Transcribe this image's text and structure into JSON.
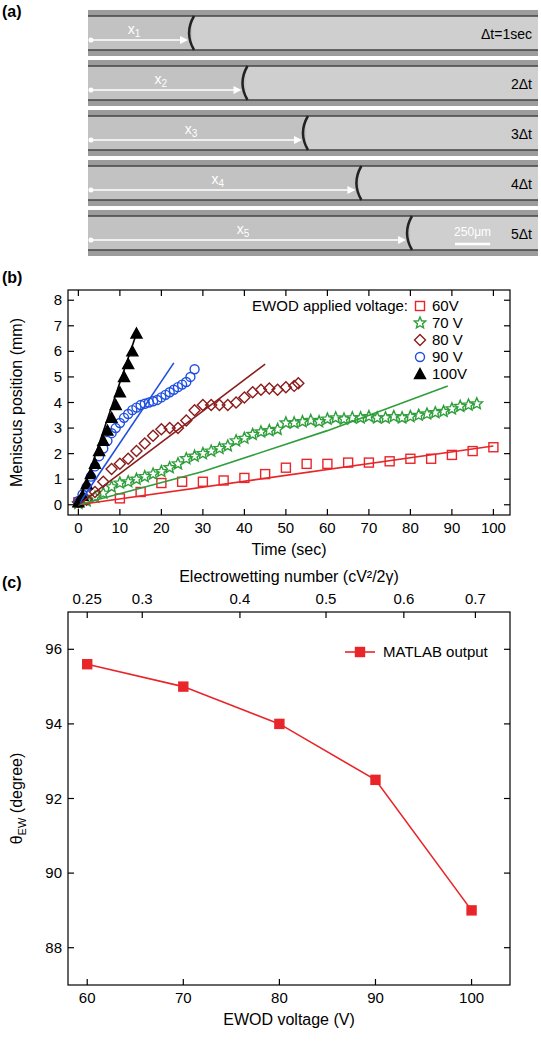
{
  "panel_a": {
    "panel_label": "(a)",
    "field_um": 3200,
    "scale_bar_um": 250,
    "scale_bar_label": "250μm",
    "frames": [
      {
        "arrow_label": {
          "base": "x",
          "sub": "1"
        },
        "time_label": "Δt=1sec",
        "meniscus_um": 740
      },
      {
        "arrow_label": {
          "base": "x",
          "sub": "2"
        },
        "time_label": "2Δt",
        "meniscus_um": 1120
      },
      {
        "arrow_label": {
          "base": "x",
          "sub": "3"
        },
        "time_label": "3Δt",
        "meniscus_um": 1550
      },
      {
        "arrow_label": {
          "base": "x",
          "sub": "4"
        },
        "time_label": "4Δt",
        "meniscus_um": 1930
      },
      {
        "arrow_label": {
          "base": "x",
          "sub": "5"
        },
        "time_label": "5Δt",
        "meniscus_um": 2290
      }
    ]
  },
  "chart_data": [
    {
      "panel_label": "(b)",
      "type": "scatter",
      "xlabel": "Time (sec)",
      "ylabel": "Meniscus position (mm)",
      "xlim": [
        -2.5,
        104
      ],
      "ylim": [
        -0.4,
        8.4
      ],
      "xticks": [
        0,
        10,
        20,
        30,
        40,
        50,
        60,
        70,
        80,
        90,
        100
      ],
      "yticks": [
        0,
        1,
        2,
        3,
        4,
        5,
        6,
        7,
        8
      ],
      "grid": false,
      "legend": "top-right",
      "legend_title": "EWOD applied voltage:",
      "series": [
        {
          "name": "60V",
          "color": "#e8262a",
          "marker": "square-open",
          "x": [
            0,
            10,
            15,
            20,
            25,
            30,
            35,
            40,
            45,
            50,
            55,
            60,
            65,
            70,
            75,
            80,
            85,
            90,
            95,
            100
          ],
          "values": [
            0.1,
            0.25,
            0.5,
            0.85,
            0.9,
            0.9,
            0.95,
            1.05,
            1.2,
            1.45,
            1.6,
            1.6,
            1.65,
            1.65,
            1.7,
            1.8,
            1.8,
            1.95,
            2.1,
            2.25
          ]
        },
        {
          "name": "70 V",
          "color": "#2e9e3a",
          "marker": "star-open",
          "x": [
            0,
            2,
            4,
            6,
            8,
            10,
            12,
            14,
            16,
            18,
            20,
            22,
            24,
            26,
            28,
            30,
            32,
            34,
            36,
            38,
            40,
            42,
            44,
            46,
            48,
            50,
            52,
            54,
            56,
            58,
            60,
            62,
            64,
            66,
            68,
            70,
            72,
            74,
            76,
            78,
            80,
            82,
            84,
            86,
            88,
            90,
            92,
            94,
            96
          ],
          "values": [
            0.05,
            0.15,
            0.3,
            0.45,
            0.7,
            0.85,
            0.9,
            1.0,
            1.1,
            1.2,
            1.3,
            1.45,
            1.6,
            1.8,
            1.9,
            2.0,
            2.1,
            2.2,
            2.3,
            2.5,
            2.6,
            2.75,
            2.85,
            2.9,
            2.95,
            3.2,
            3.2,
            3.25,
            3.3,
            3.25,
            3.35,
            3.4,
            3.35,
            3.4,
            3.4,
            3.45,
            3.4,
            3.4,
            3.45,
            3.4,
            3.45,
            3.5,
            3.55,
            3.6,
            3.65,
            3.75,
            3.85,
            3.9,
            3.95
          ]
        },
        {
          "name": "80 V",
          "color": "#8b1c1c",
          "marker": "diamond-open",
          "x": [
            0,
            2,
            4,
            6,
            8,
            10,
            12,
            14,
            16,
            18,
            20,
            22,
            24,
            26,
            28,
            30,
            32,
            34,
            36,
            38,
            40,
            42,
            44,
            46,
            48,
            50,
            52,
            53
          ],
          "values": [
            0.1,
            0.2,
            0.5,
            0.9,
            1.4,
            1.6,
            1.8,
            2.1,
            2.4,
            2.7,
            2.95,
            3.0,
            3.0,
            3.3,
            3.7,
            3.9,
            3.9,
            3.9,
            3.9,
            4.0,
            4.2,
            4.4,
            4.5,
            4.55,
            4.5,
            4.6,
            4.65,
            4.75
          ]
        },
        {
          "name": "90 V",
          "color": "#1f4fe0",
          "marker": "circle-open",
          "x": [
            0,
            1,
            2,
            3,
            4,
            5,
            6,
            7,
            8,
            9,
            10,
            11,
            12,
            13,
            14,
            15,
            16,
            17,
            18,
            19,
            20,
            21,
            22,
            23,
            24,
            25,
            26,
            27,
            28
          ],
          "values": [
            0.15,
            0.4,
            0.7,
            1.1,
            1.5,
            1.9,
            2.2,
            2.5,
            2.8,
            3.0,
            3.2,
            3.4,
            3.55,
            3.7,
            3.8,
            3.9,
            3.95,
            4.0,
            4.05,
            4.1,
            4.2,
            4.3,
            4.4,
            4.5,
            4.6,
            4.7,
            4.8,
            5.0,
            5.3
          ]
        },
        {
          "name": "100V",
          "color": "#000000",
          "marker": "triangle-filled",
          "x": [
            0,
            1,
            2,
            3,
            4,
            5,
            6,
            7,
            8,
            9,
            10,
            11,
            12,
            13,
            14
          ],
          "values": [
            0.1,
            0.35,
            0.8,
            1.2,
            1.6,
            2.1,
            2.5,
            2.9,
            3.4,
            3.9,
            4.4,
            5.0,
            5.5,
            6.0,
            6.7
          ]
        },
        {
          "type": "line",
          "color": "#e8262a",
          "line_style": "solid",
          "x": [
            0,
            100
          ],
          "values": [
            0,
            2.3
          ]
        },
        {
          "type": "line",
          "color": "#2e9e3a",
          "line_style": "solid",
          "x": [
            0,
            30,
            60,
            89
          ],
          "values": [
            0,
            1.3,
            2.9,
            4.65
          ]
        },
        {
          "type": "line",
          "color": "#8b1c1c",
          "line_style": "solid",
          "x": [
            0,
            45
          ],
          "values": [
            0,
            5.5
          ]
        },
        {
          "type": "line",
          "color": "#1f4fe0",
          "line_style": "solid",
          "x": [
            0,
            23
          ],
          "values": [
            0,
            5.55
          ]
        },
        {
          "type": "line",
          "color": "#000000",
          "line_style": "solid",
          "x": [
            0,
            14
          ],
          "values": [
            0,
            6.7
          ]
        }
      ]
    },
    {
      "panel_label": "(c)",
      "type": "line",
      "xlabel": "EWOD voltage (V)",
      "ylabel": {
        "base": "θ",
        "sub": "EW",
        "after": " (degree)"
      },
      "x2label": "Electrowetting number (cV²/2γ)",
      "xlim": [
        58,
        104
      ],
      "ylim": [
        87,
        97
      ],
      "x2lim": [
        0.233611,
        0.751111
      ],
      "xticks": [
        60,
        70,
        80,
        90,
        100
      ],
      "yticks": [
        88,
        90,
        92,
        94,
        96
      ],
      "x2ticks": [
        0.25,
        0.3,
        0.4,
        0.5,
        0.6,
        0.7
      ],
      "grid": false,
      "legend": "top-right",
      "series": [
        {
          "name": "MATLAB output",
          "color": "#e8262a",
          "marker": "square",
          "line_style": "solid",
          "x": [
            60,
            70,
            80,
            90,
            100
          ],
          "values": [
            95.6,
            95.0,
            94.0,
            92.5,
            89.0
          ]
        }
      ]
    }
  ]
}
